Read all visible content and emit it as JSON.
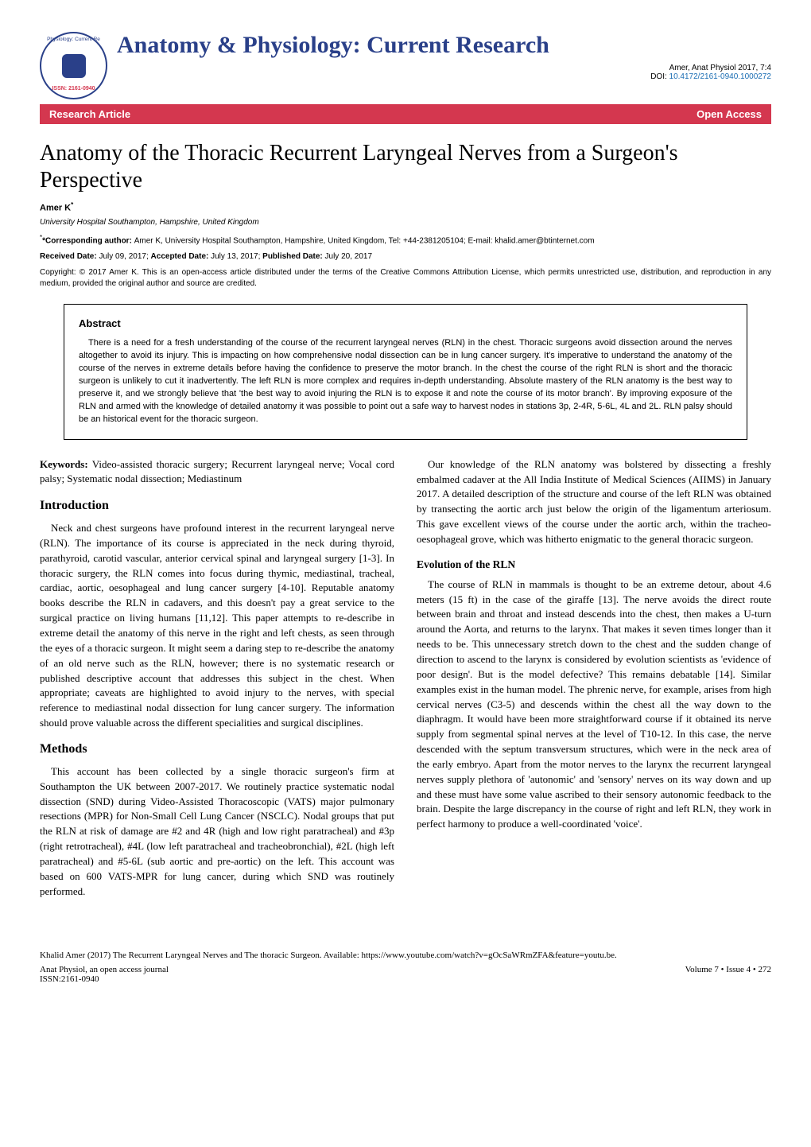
{
  "header": {
    "journal_name": "Anatomy & Physiology: Current Research",
    "logo": {
      "top_text": "Physiology: Current Re",
      "issn_label": "ISSN: 2161-0940"
    },
    "citation_line": "Amer, Anat Physiol 2017, 7:4",
    "doi_label": "DOI: ",
    "doi": "10.4172/2161-0940.1000272"
  },
  "bar": {
    "left": "Research Article",
    "right": "Open Access"
  },
  "article": {
    "title": "Anatomy of the Thoracic Recurrent Laryngeal Nerves from a Surgeon's Perspective",
    "author": "Amer K",
    "author_sup": "*",
    "affiliation": "University Hospital Southampton, Hampshire, United Kingdom",
    "correspondence_label": "*Corresponding author: ",
    "correspondence_text": "Amer K, University Hospital Southampton, Hampshire, United Kingdom, Tel: +44-2381205104; E-mail: khalid.amer@btinternet.com",
    "received_label": "Received Date: ",
    "received": "July 09, 2017; ",
    "accepted_label": "Accepted Date: ",
    "accepted": "July 13, 2017; ",
    "published_label": "Published Date: ",
    "published": "July 20, 2017",
    "copyright_label": "Copyright: ",
    "copyright_text": "© 2017 Amer K. This is an open-access article distributed under the terms of the Creative Commons Attribution License, which permits unrestricted use, distribution, and reproduction in any medium, provided the original author and source are credited."
  },
  "abstract": {
    "heading": "Abstract",
    "text": "There is a need for a fresh understanding of the course of the recurrent laryngeal nerves (RLN) in the chest. Thoracic surgeons avoid dissection around the nerves altogether to avoid its injury. This is impacting on how comprehensive nodal dissection can be in lung cancer surgery. It's imperative to understand the anatomy of the course of the nerves in extreme details before having the confidence to preserve the motor branch. In the chest the course of the right RLN is short and the thoracic surgeon is unlikely to cut it inadvertently. The left RLN is more complex and requires in-depth understanding. Absolute mastery of the RLN anatomy is the best way to preserve it, and we strongly believe that 'the best way to avoid injuring the RLN is to expose it and note the course of its motor branch'. By improving exposure of the RLN and armed with the knowledge of detailed anatomy it was possible to point out a safe way to harvest nodes in stations 3p, 2-4R, 5-6L, 4L and 2L. RLN palsy should be an historical event for the thoracic surgeon."
  },
  "keywords": {
    "label": "Keywords: ",
    "text": "Video-assisted thoracic surgery; Recurrent laryngeal nerve; Vocal cord palsy; Systematic nodal dissection; Mediastinum"
  },
  "sections": {
    "intro_heading": "Introduction",
    "intro_text": "Neck and chest surgeons have profound interest in the recurrent laryngeal nerve (RLN). The importance of its course is appreciated in the neck during thyroid, parathyroid, carotid vascular, anterior cervical spinal and laryngeal surgery [1-3]. In thoracic surgery, the RLN comes into focus during thymic, mediastinal, tracheal, cardiac, aortic, oesophageal and lung cancer surgery [4-10]. Reputable anatomy books describe the RLN in cadavers, and this doesn't pay a great service to the surgical practice on living humans [11,12]. This paper attempts to re-describe in extreme detail the anatomy of this nerve in the right and left chests, as seen through the eyes of a thoracic surgeon. It might seem a daring step to re-describe the anatomy of an old nerve such as the RLN, however; there is no systematic research or published descriptive account that addresses this subject in the chest. When appropriate; caveats are highlighted to avoid injury to the nerves, with special reference to mediastinal nodal dissection for lung cancer surgery. The information should prove valuable across the different specialities and surgical disciplines.",
    "methods_heading": "Methods",
    "methods_text": "This account has been collected by a single thoracic surgeon's firm at Southampton the UK between 2007-2017. We routinely practice systematic nodal dissection (SND) during Video-Assisted Thoracoscopic (VATS) major pulmonary resections (MPR) for Non-Small Cell Lung Cancer (NSCLC). Nodal groups that put the RLN at risk of damage are #2 and 4R (high and low right paratracheal) and #3p (right retrotracheal), #4L (low left paratracheal and tracheobronchial), #2L (high left paratracheal) and #5-6L (sub aortic and pre-aortic) on the left. This account was based on 600 VATS-MPR for lung cancer, during which SND was routinely performed.",
    "col2_para1": "Our knowledge of the RLN anatomy was bolstered by dissecting a freshly embalmed cadaver at the All India Institute of Medical Sciences (AIIMS) in January 2017. A detailed description of the structure and course of the left RLN was obtained by transecting the aortic arch just below the origin of the ligamentum arteriosum. This gave excellent views of the course under the aortic arch, within the tracheo-oesophageal grove, which was hitherto enigmatic to the general thoracic surgeon.",
    "evolution_heading": "Evolution of the RLN",
    "evolution_text": "The course of RLN in mammals is thought to be an extreme detour, about 4.6 meters (15 ft) in the case of the giraffe [13]. The nerve avoids the direct route between brain and throat and instead descends into the chest, then makes a U-turn around the Aorta, and returns to the larynx. That makes it seven times longer than it needs to be. This unnecessary stretch down to the chest and the sudden change of direction to ascend to the larynx is considered by evolution scientists as 'evidence of poor design'. But is the model defective? This remains debatable [14]. Similar examples exist in the human model. The phrenic nerve, for example, arises from high cervical nerves (C3-5) and descends within the chest all the way down to the diaphragm. It would have been more straightforward course if it obtained its nerve supply from segmental spinal nerves at the level of T10-12. In this case, the nerve descended with the septum transversum structures, which were in the neck area of the early embryo. Apart from the motor nerves to the larynx the recurrent laryngeal nerves supply plethora of 'autonomic' and 'sensory' nerves on its way down and up and these must have some value ascribed to their sensory autonomic feedback to the brain. Despite the large discrepancy in the course of right and left RLN, they work in perfect harmony to produce a well-coordinated 'voice'."
  },
  "footer": {
    "citation": "Khalid Amer (2017) The Recurrent Laryngeal Nerves and The thoracic Surgeon. Available: https://www.youtube.com/watch?v=gOcSaWRmZFA&feature=youtu.be.",
    "journal_line": "Anat Physiol, an open access journal",
    "issn_line": "ISSN:2161-0940",
    "volume_line": "Volume 7 • Issue 4 • 272"
  },
  "colors": {
    "brand_blue": "#2a4089",
    "brand_red": "#d4374f",
    "link_blue": "#1a6db3",
    "text": "#000000",
    "bg": "#ffffff"
  },
  "fonts": {
    "serif": "Times New Roman",
    "sans": "Arial",
    "title_size_pt": 28,
    "journal_size_pt": 30,
    "body_size_pt": 13,
    "abstract_size_pt": 11,
    "meta_size_pt": 10
  }
}
